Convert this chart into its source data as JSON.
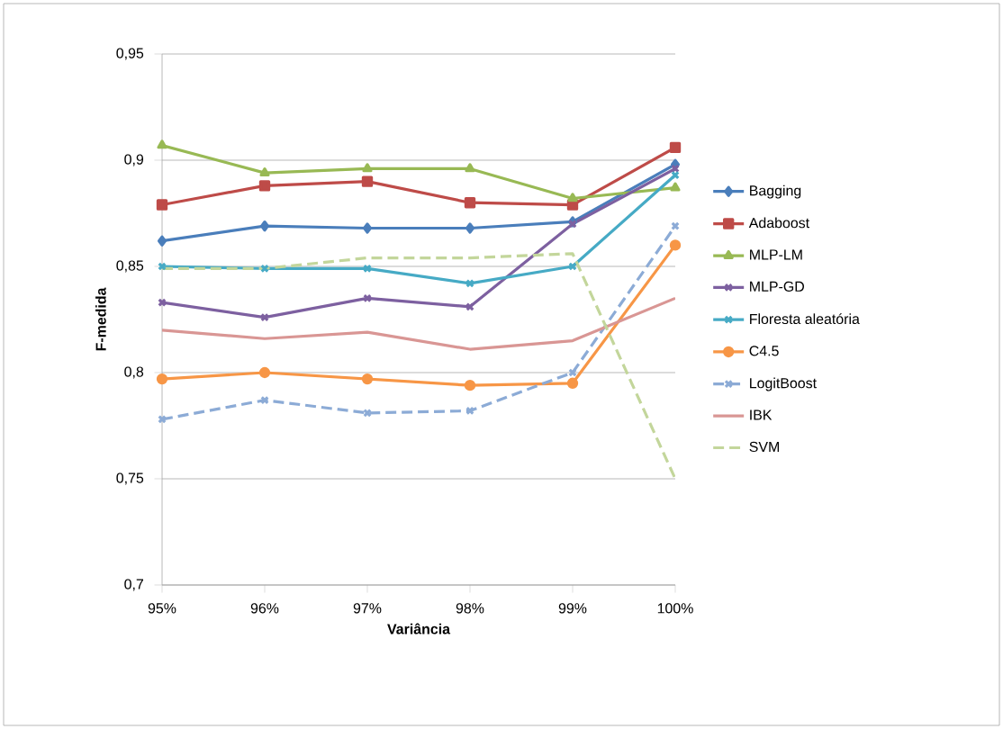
{
  "chart_data": {
    "type": "line",
    "xlabel": "Variância",
    "ylabel": "F-medida",
    "categories": [
      "95%",
      "96%",
      "97%",
      "98%",
      "99%",
      "100%"
    ],
    "ylim": [
      0.7,
      0.95
    ],
    "yticks": [
      {
        "value": 0.7,
        "label": "0,7"
      },
      {
        "value": 0.75,
        "label": "0,75"
      },
      {
        "value": 0.8,
        "label": "0,8"
      },
      {
        "value": 0.85,
        "label": "0,85"
      },
      {
        "value": 0.9,
        "label": "0,9"
      },
      {
        "value": 0.95,
        "label": "0,95"
      }
    ],
    "grid": "y",
    "legend": "right",
    "series": [
      {
        "name": "Bagging",
        "color": "#4a7ebb",
        "marker": "diamond",
        "values": [
          0.862,
          0.869,
          0.868,
          0.868,
          0.871,
          0.898
        ]
      },
      {
        "name": "Adaboost",
        "color": "#be4b48",
        "marker": "square",
        "values": [
          0.879,
          0.888,
          0.89,
          0.88,
          0.879,
          0.906
        ]
      },
      {
        "name": "MLP-LM",
        "color": "#98b954",
        "marker": "triangle",
        "values": [
          0.907,
          0.894,
          0.896,
          0.896,
          0.882,
          0.887
        ]
      },
      {
        "name": "MLP-GD",
        "color": "#7d60a0",
        "marker": "cross",
        "values": [
          0.833,
          0.826,
          0.835,
          0.831,
          0.87,
          0.896
        ]
      },
      {
        "name": "Floresta aleatória",
        "color": "#46aac5",
        "marker": "cross",
        "values": [
          0.85,
          0.849,
          0.849,
          0.842,
          0.85,
          0.893
        ]
      },
      {
        "name": "C4.5",
        "color": "#f79646",
        "marker": "circle",
        "values": [
          0.797,
          0.8,
          0.797,
          0.794,
          0.795,
          0.86
        ]
      },
      {
        "name": "LogitBoost",
        "color": "#8cabd6",
        "marker": "cross",
        "line_style": "dashed",
        "values": [
          0.778,
          0.787,
          0.781,
          0.782,
          0.8,
          0.869
        ]
      },
      {
        "name": "IBK",
        "color": "#d99694",
        "marker": "none",
        "values": [
          0.82,
          0.816,
          0.819,
          0.811,
          0.815,
          0.835
        ]
      },
      {
        "name": "SVM",
        "color": "#c3d69b",
        "marker": "none",
        "line_style": "dashed",
        "values": [
          0.849,
          0.849,
          0.854,
          0.854,
          0.856,
          0.75
        ]
      }
    ]
  }
}
